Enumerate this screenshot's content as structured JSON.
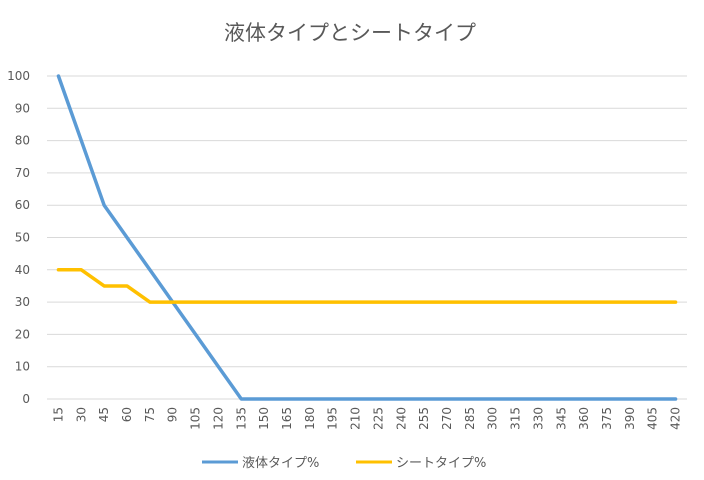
{
  "chart_data": {
    "type": "line",
    "title": "液体タイプとシートタイプ",
    "xlabel": "",
    "ylabel": "",
    "categories": [
      "15",
      "30",
      "45",
      "60",
      "75",
      "90",
      "105",
      "120",
      "135",
      "150",
      "165",
      "180",
      "195",
      "210",
      "225",
      "240",
      "255",
      "270",
      "285",
      "300",
      "315",
      "330",
      "345",
      "360",
      "375",
      "390",
      "405",
      "420"
    ],
    "ylim": [
      0,
      100
    ],
    "yticks": [
      0,
      10,
      20,
      30,
      40,
      50,
      60,
      70,
      80,
      90,
      100
    ],
    "grid": true,
    "legend_position": "bottom",
    "series": [
      {
        "name": "液体タイプ%",
        "color": "#5B9BD5",
        "values": [
          100,
          80,
          60,
          50,
          40,
          30,
          20,
          10,
          0,
          0,
          0,
          0,
          0,
          0,
          0,
          0,
          0,
          0,
          0,
          0,
          0,
          0,
          0,
          0,
          0,
          0,
          0,
          0
        ]
      },
      {
        "name": "シートタイプ%",
        "color": "#FFC000",
        "values": [
          40,
          40,
          35,
          35,
          30,
          30,
          30,
          30,
          30,
          30,
          30,
          30,
          30,
          30,
          30,
          30,
          30,
          30,
          30,
          30,
          30,
          30,
          30,
          30,
          30,
          30,
          30,
          30
        ]
      }
    ]
  }
}
